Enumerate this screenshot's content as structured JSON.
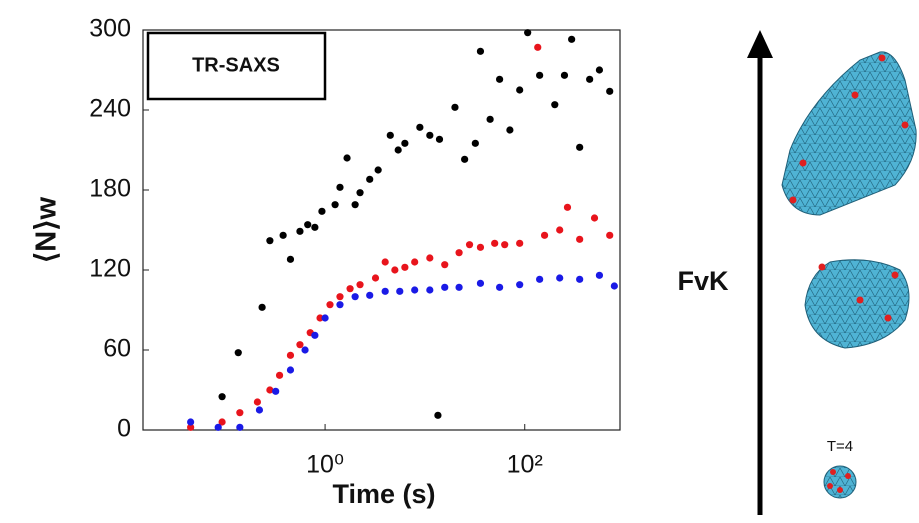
{
  "chart_data": {
    "type": "scatter",
    "xlabel": "Time (s)",
    "ylabel": "⟨N⟩w",
    "legend_text": "TR-SAXS",
    "legend_color": "#b57edc",
    "xscale": "log",
    "xlim": [
      0.015,
      900
    ],
    "ylim": [
      0,
      300
    ],
    "xticks": [
      {
        "value": 1,
        "label": "10⁰"
      },
      {
        "value": 100,
        "label": "10²"
      }
    ],
    "yticks": [
      0,
      60,
      120,
      180,
      240,
      300
    ],
    "series": [
      {
        "color": "#000000",
        "x": [
          0.093,
          0.135,
          0.234,
          0.28,
          0.38,
          0.45,
          0.56,
          0.67,
          0.79,
          0.93,
          1.26,
          1.41,
          1.66,
          2.0,
          2.24,
          2.8,
          3.4,
          4.5,
          5.4,
          6.3,
          8.9,
          11.2,
          14,
          20,
          25,
          32,
          36,
          45,
          56,
          71,
          89,
          107,
          141,
          200,
          250,
          295,
          355,
          447,
          560,
          710,
          13.5
        ],
        "values": [
          25,
          58,
          92,
          142,
          146,
          128,
          149,
          154,
          152,
          164,
          169,
          182,
          204,
          169,
          178,
          188,
          195,
          221,
          210,
          215,
          227,
          221,
          218,
          242,
          203,
          215,
          284,
          233,
          263,
          225,
          255,
          298,
          266,
          244,
          266,
          293,
          212,
          263,
          270,
          254,
          11
        ]
      },
      {
        "color": "#e8141c",
        "x": [
          0.045,
          0.093,
          0.14,
          0.21,
          0.28,
          0.35,
          0.45,
          0.56,
          0.71,
          0.89,
          1.12,
          1.41,
          1.78,
          2.24,
          3.2,
          4.0,
          5.0,
          6.3,
          7.9,
          11.2,
          15.8,
          22,
          28,
          36,
          50,
          63,
          89,
          135,
          158,
          224,
          268,
          355,
          500,
          710
        ],
        "values": [
          2,
          6,
          13,
          21,
          30,
          41,
          56,
          64,
          73,
          84,
          94,
          100,
          106,
          109,
          114,
          126,
          120,
          122,
          126,
          129,
          124,
          133,
          139,
          137,
          140,
          139,
          140,
          287,
          146,
          150,
          167,
          143,
          159,
          146
        ]
      },
      {
        "color": "#1a1ae6",
        "x": [
          0.045,
          0.085,
          0.14,
          0.22,
          0.32,
          0.45,
          0.63,
          0.79,
          1.0,
          1.41,
          2.0,
          2.8,
          4.0,
          5.6,
          7.9,
          11.2,
          15.8,
          22,
          36,
          56,
          89,
          141,
          224,
          355,
          560,
          790
        ],
        "values": [
          6,
          2,
          2,
          15,
          29,
          45,
          60,
          71,
          84,
          94,
          100,
          101,
          104,
          104,
          105,
          105,
          107,
          107,
          110,
          107,
          109,
          113,
          114,
          113,
          116,
          108
        ]
      }
    ]
  },
  "diagram": {
    "axis_label": "FvK",
    "shape_label": "T=4"
  }
}
